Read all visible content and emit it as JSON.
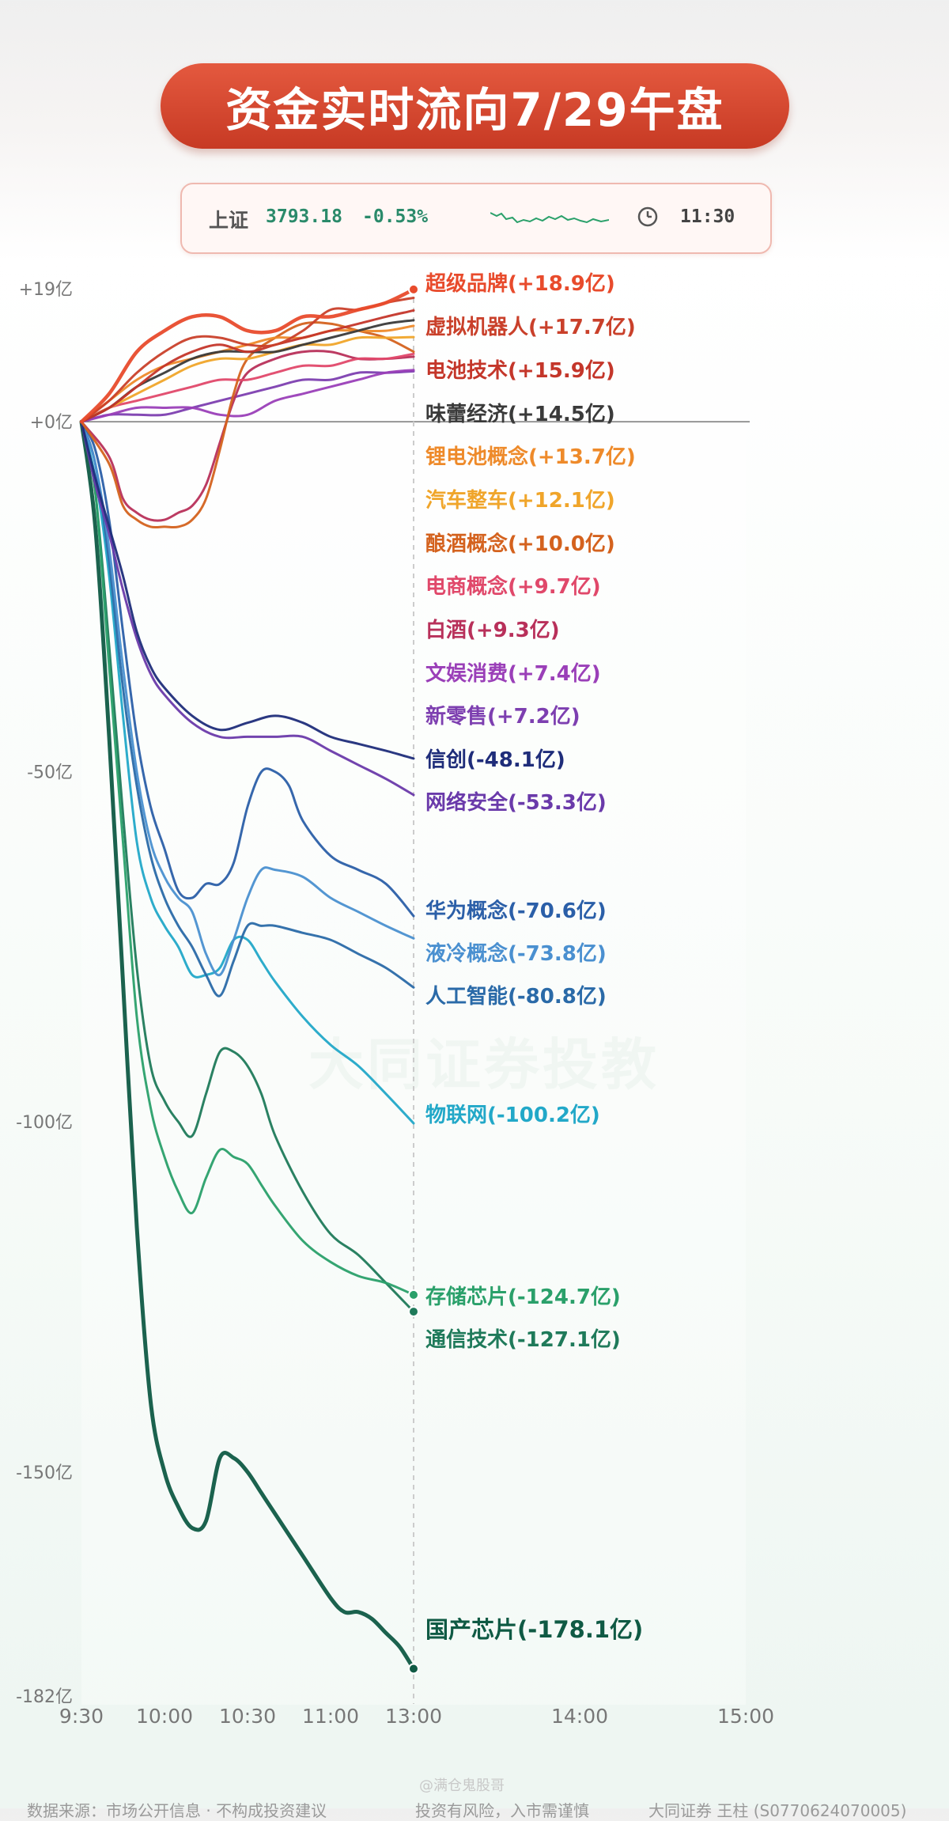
{
  "title": "资金实时流向7/29午盘",
  "index": {
    "name": "上证",
    "value": "3793.18",
    "change": "-0.53%",
    "time": "11:30",
    "icons": [
      "sparkline-icon",
      "clock-icon"
    ]
  },
  "watermark": "大同证券投教",
  "footer": {
    "source": "数据来源：市场公开信息 · 不构成投资建议",
    "risk": "投资有风险，入市需谨慎",
    "author": "大同证券 王柱 (S0770624070005)",
    "platform_mark": "@满仓鬼股哥"
  },
  "chart_data": {
    "type": "line",
    "ylim": [
      -182,
      19
    ],
    "y_ticks": [
      19,
      0,
      -50,
      -100,
      -150,
      -182
    ],
    "y_tick_labels": [
      "+19亿",
      "+0亿",
      "-50亿",
      "-100亿",
      "-150亿",
      "-182亿"
    ],
    "x_ticks": [
      "9:30",
      "10:00",
      "10:30",
      "11:00",
      "13:00",
      "14:00",
      "15:00"
    ],
    "x_tick_minutes": [
      0,
      30,
      60,
      90,
      120,
      180,
      240
    ],
    "end_minute": 120,
    "grid": false,
    "series": [
      {
        "name": "超级品牌",
        "final": 18.9,
        "label": "超级品牌(+18.9亿)",
        "color": "#e84b2c",
        "x": [
          0,
          10,
          20,
          30,
          40,
          50,
          60,
          70,
          80,
          90,
          100,
          110,
          120
        ],
        "y": [
          0,
          4,
          10,
          13,
          15,
          15,
          13,
          13,
          15,
          15,
          16,
          17,
          18.9
        ]
      },
      {
        "name": "虚拟机器人",
        "final": 17.7,
        "label": "虚拟机器人(+17.7亿)",
        "color": "#c9402a",
        "x": [
          0,
          10,
          20,
          30,
          40,
          50,
          60,
          70,
          80,
          90,
          100,
          110,
          120
        ],
        "y": [
          0,
          3,
          7,
          10,
          12,
          12,
          11,
          11,
          13,
          16,
          16,
          17,
          17.7
        ]
      },
      {
        "name": "电池技术",
        "final": 15.9,
        "label": "电池技术(+15.9亿)",
        "color": "#c4362a",
        "x": [
          0,
          10,
          20,
          30,
          40,
          50,
          60,
          70,
          80,
          90,
          100,
          110,
          120
        ],
        "y": [
          0,
          2,
          5,
          8,
          10,
          11,
          10,
          11,
          12,
          13,
          14,
          15,
          15.9
        ]
      },
      {
        "name": "味蕾经济",
        "final": 14.5,
        "label": "味蕾经济(+14.5亿)",
        "color": "#3a3a3a",
        "x": [
          0,
          10,
          20,
          30,
          40,
          50,
          60,
          70,
          80,
          90,
          100,
          110,
          120
        ],
        "y": [
          0,
          2,
          5,
          7,
          9,
          10,
          10,
          10,
          11,
          12,
          13,
          14,
          14.5
        ]
      },
      {
        "name": "锂电池概念",
        "final": 13.7,
        "label": "锂电池概念(+13.7亿)",
        "color": "#ee8a2a",
        "x": [
          0,
          10,
          20,
          30,
          40,
          50,
          60,
          70,
          80,
          90,
          100,
          110,
          120
        ],
        "y": [
          0,
          3,
          6,
          8,
          9,
          10,
          11,
          12,
          12,
          13,
          13,
          13,
          13.7
        ]
      },
      {
        "name": "汽车整车",
        "final": 12.1,
        "label": "汽车整车(+12.1亿)",
        "color": "#f0a52a",
        "x": [
          0,
          10,
          20,
          30,
          40,
          50,
          60,
          70,
          80,
          90,
          100,
          110,
          120
        ],
        "y": [
          0,
          2,
          4,
          6,
          8,
          9,
          9,
          10,
          11,
          11,
          12,
          12,
          12.1
        ]
      },
      {
        "name": "酿酒概念",
        "final": 10.0,
        "label": "酿酒概念(+10.0亿)",
        "color": "#d4621e",
        "x": [
          0,
          10,
          15,
          20,
          25,
          30,
          35,
          40,
          45,
          50,
          55,
          60,
          70,
          80,
          90,
          100,
          110,
          120
        ],
        "y": [
          0,
          -6,
          -12,
          -14,
          -15,
          -15,
          -15,
          -14,
          -11,
          -4,
          4,
          9,
          12,
          14,
          14,
          13,
          12,
          10.0
        ]
      },
      {
        "name": "电商概念",
        "final": 9.7,
        "label": "电商概念(+9.7亿)",
        "color": "#e0486a",
        "x": [
          0,
          10,
          20,
          30,
          40,
          50,
          60,
          70,
          80,
          90,
          100,
          110,
          120
        ],
        "y": [
          0,
          2,
          3,
          4,
          5,
          6,
          6,
          7,
          8,
          8,
          9,
          9,
          9.7
        ]
      },
      {
        "name": "白酒",
        "final": 9.3,
        "label": "白酒(+9.3亿)",
        "color": "#b8305a",
        "x": [
          0,
          10,
          15,
          20,
          25,
          30,
          35,
          40,
          45,
          50,
          55,
          60,
          70,
          80,
          90,
          100,
          110,
          120
        ],
        "y": [
          0,
          -5,
          -11,
          -13,
          -14,
          -14,
          -13,
          -12,
          -9,
          -3,
          3,
          7,
          9,
          10,
          10,
          9,
          9,
          9.3
        ]
      },
      {
        "name": "文娱消费",
        "final": 7.4,
        "label": "文娱消费(+7.4亿)",
        "color": "#9a3fb8",
        "x": [
          0,
          10,
          20,
          30,
          40,
          50,
          60,
          70,
          80,
          90,
          100,
          110,
          120
        ],
        "y": [
          0,
          1,
          2,
          2,
          2,
          1,
          1,
          3,
          4,
          5,
          6,
          7,
          7.4
        ]
      },
      {
        "name": "新零售",
        "final": 7.2,
        "label": "新零售(+7.2亿)",
        "color": "#7d3fb0",
        "x": [
          0,
          10,
          20,
          30,
          40,
          50,
          60,
          70,
          80,
          90,
          100,
          110,
          120
        ],
        "y": [
          0,
          1,
          1,
          1,
          2,
          3,
          4,
          5,
          6,
          6,
          7,
          7,
          7.2
        ]
      },
      {
        "name": "信创",
        "final": -48.1,
        "label": "信创(-48.1亿)",
        "color": "#1f2d7a",
        "x": [
          0,
          5,
          10,
          15,
          20,
          25,
          30,
          40,
          50,
          60,
          70,
          80,
          90,
          100,
          110,
          120
        ],
        "y": [
          0,
          -8,
          -15,
          -22,
          -30,
          -35,
          -38,
          -42,
          -44,
          -43,
          -42,
          -43,
          -45,
          -46,
          -47,
          -48.1
        ]
      },
      {
        "name": "网络安全",
        "final": -53.3,
        "label": "网络安全(-53.3亿)",
        "color": "#6a3aaa",
        "x": [
          0,
          5,
          10,
          15,
          20,
          25,
          30,
          40,
          50,
          60,
          70,
          80,
          90,
          100,
          110,
          120
        ],
        "y": [
          0,
          -9,
          -16,
          -24,
          -31,
          -36,
          -39,
          -43,
          -45,
          -45,
          -45,
          -45,
          -47,
          -49,
          -51,
          -53.3
        ]
      },
      {
        "name": "华为概念",
        "final": -70.6,
        "label": "华为概念(-70.6亿)",
        "color": "#2b5fa8",
        "x": [
          0,
          5,
          10,
          15,
          20,
          25,
          30,
          35,
          40,
          45,
          50,
          55,
          60,
          65,
          70,
          75,
          80,
          90,
          100,
          110,
          120
        ],
        "y": [
          0,
          -4,
          -14,
          -30,
          -45,
          -55,
          -61,
          -67,
          -68,
          -66,
          -66,
          -63,
          -55,
          -50,
          -50,
          -52,
          -57,
          -62,
          -64,
          -66,
          -70.6
        ]
      },
      {
        "name": "液冷概念",
        "final": -73.8,
        "label": "液冷概念(-73.8亿)",
        "color": "#4a90d0",
        "x": [
          0,
          5,
          10,
          15,
          20,
          25,
          30,
          35,
          40,
          45,
          50,
          55,
          60,
          65,
          70,
          80,
          90,
          100,
          110,
          120
        ],
        "y": [
          0,
          -6,
          -18,
          -35,
          -50,
          -60,
          -65,
          -68,
          -70,
          -76,
          -79,
          -74,
          -68,
          -64,
          -64,
          -65,
          -68,
          -70,
          -72,
          -73.8
        ]
      },
      {
        "name": "人工智能",
        "final": -80.8,
        "label": "人工智能(-80.8亿)",
        "color": "#2a6aa8",
        "x": [
          0,
          5,
          10,
          15,
          20,
          25,
          30,
          35,
          40,
          45,
          50,
          55,
          60,
          65,
          70,
          80,
          90,
          100,
          110,
          120
        ],
        "y": [
          0,
          -6,
          -20,
          -38,
          -52,
          -62,
          -68,
          -72,
          -75,
          -79,
          -82,
          -77,
          -72,
          -72,
          -72,
          -73,
          -74,
          -76,
          -78,
          -80.8
        ]
      },
      {
        "name": "物联网",
        "final": -100.2,
        "label": "物联网(-100.2亿)",
        "color": "#22a8c8",
        "x": [
          0,
          5,
          10,
          15,
          20,
          25,
          30,
          35,
          40,
          45,
          50,
          55,
          60,
          65,
          70,
          80,
          90,
          100,
          110,
          120
        ],
        "y": [
          0,
          -8,
          -22,
          -42,
          -60,
          -68,
          -72,
          -75,
          -79,
          -79,
          -78,
          -74,
          -74,
          -77,
          -80,
          -85,
          -89,
          -92,
          -96,
          -100.2
        ]
      },
      {
        "name": "存储芯片",
        "final": -124.7,
        "label": "存储芯片(-124.7亿)",
        "color": "#2aa06a",
        "x": [
          0,
          5,
          10,
          15,
          20,
          25,
          30,
          35,
          40,
          45,
          50,
          55,
          60,
          65,
          70,
          80,
          90,
          100,
          110,
          120
        ],
        "y": [
          0,
          -10,
          -35,
          -60,
          -85,
          -98,
          -105,
          -110,
          -113,
          -108,
          -104,
          -105,
          -106,
          -109,
          -112,
          -117,
          -120,
          -122,
          -123,
          -124.7
        ]
      },
      {
        "name": "通信技术",
        "final": -127.1,
        "label": "通信技术(-127.1亿)",
        "color": "#1f7a5a",
        "x": [
          0,
          5,
          10,
          15,
          20,
          25,
          30,
          35,
          40,
          45,
          50,
          55,
          60,
          65,
          70,
          80,
          90,
          100,
          110,
          120
        ],
        "y": [
          0,
          -10,
          -32,
          -56,
          -78,
          -92,
          -97,
          -100,
          -102,
          -96,
          -90,
          -90,
          -92,
          -96,
          -102,
          -110,
          -116,
          -119,
          -123,
          -127.1
        ]
      },
      {
        "name": "国产芯片",
        "final": -178.1,
        "label": "国产芯片(-178.1亿)",
        "color": "#0f5a44",
        "x": [
          0,
          5,
          10,
          15,
          20,
          25,
          30,
          35,
          40,
          45,
          50,
          55,
          60,
          65,
          70,
          80,
          90,
          95,
          100,
          105,
          110,
          115,
          120
        ],
        "y": [
          0,
          -15,
          -45,
          -80,
          -115,
          -140,
          -150,
          -155,
          -158,
          -157,
          -148,
          -148,
          -150,
          -153,
          -156,
          -162,
          -168,
          -170,
          -170,
          -171,
          -173,
          -175,
          -178.1
        ]
      }
    ]
  }
}
